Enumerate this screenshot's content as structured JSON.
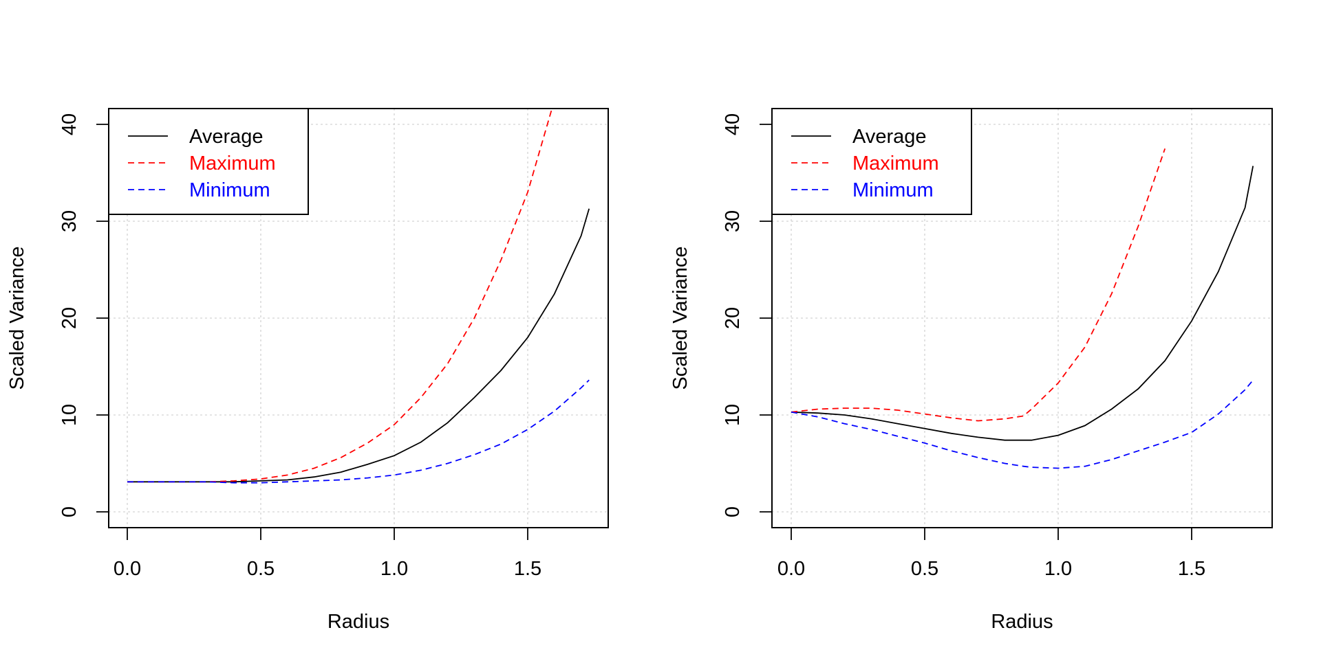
{
  "chart_data": [
    {
      "type": "line",
      "title": "",
      "xlabel": "Radius",
      "ylabel": "Scaled Variance",
      "xlim": [
        -0.07,
        1.8
      ],
      "ylim": [
        -1.6,
        41.6
      ],
      "xticks": [
        "0.0",
        "0.5",
        "1.0",
        "1.5"
      ],
      "xtick_values": [
        0,
        0.5,
        1.0,
        1.5
      ],
      "yticks": [
        "0",
        "10",
        "20",
        "30",
        "40"
      ],
      "ytick_values": [
        0,
        10,
        20,
        30,
        40
      ],
      "grid": true,
      "legend": "top-left",
      "x": [
        0,
        0.1,
        0.2,
        0.3,
        0.4,
        0.5,
        0.6,
        0.7,
        0.8,
        0.9,
        1.0,
        1.1,
        1.2,
        1.3,
        1.4,
        1.5,
        1.6,
        1.7,
        1.73
      ],
      "series": [
        {
          "name": "Average",
          "color": "#000000",
          "dash": "solid",
          "values": [
            3.1,
            3.1,
            3.1,
            3.1,
            3.1,
            3.2,
            3.3,
            3.6,
            4.1,
            4.9,
            5.8,
            7.2,
            9.2,
            11.8,
            14.6,
            18.0,
            22.5,
            28.5,
            31.3
          ]
        },
        {
          "name": "Maximum",
          "color": "#ff0000",
          "dash": "dashed",
          "values": [
            3.1,
            3.1,
            3.1,
            3.1,
            3.2,
            3.4,
            3.8,
            4.5,
            5.6,
            7.1,
            9.0,
            11.8,
            15.3,
            20.0,
            26.0,
            33.0,
            42.5,
            null,
            null
          ]
        },
        {
          "name": "Minimum",
          "color": "#0000ff",
          "dash": "dashed",
          "values": [
            3.1,
            3.1,
            3.1,
            3.1,
            3.0,
            3.0,
            3.1,
            3.2,
            3.3,
            3.5,
            3.8,
            4.3,
            5.0,
            5.9,
            7.0,
            8.5,
            10.4,
            12.8,
            13.6
          ]
        }
      ]
    },
    {
      "type": "line",
      "title": "",
      "xlabel": "Radius",
      "ylabel": "Scaled Variance",
      "xlim": [
        -0.07,
        1.8
      ],
      "ylim": [
        -1.6,
        41.6
      ],
      "xticks": [
        "0.0",
        "0.5",
        "1.0",
        "1.5"
      ],
      "xtick_values": [
        0,
        0.5,
        1.0,
        1.5
      ],
      "yticks": [
        "0",
        "10",
        "20",
        "30",
        "40"
      ],
      "ytick_values": [
        0,
        10,
        20,
        30,
        40
      ],
      "grid": true,
      "legend": "top-left",
      "x": [
        0,
        0.1,
        0.2,
        0.3,
        0.4,
        0.5,
        0.6,
        0.7,
        0.8,
        0.87,
        0.9,
        1.0,
        1.1,
        1.2,
        1.3,
        1.4,
        1.5,
        1.6,
        1.7,
        1.73
      ],
      "series": [
        {
          "name": "Average",
          "color": "#000000",
          "dash": "solid",
          "values": [
            10.3,
            10.2,
            10.0,
            9.6,
            9.1,
            8.6,
            8.1,
            7.7,
            7.4,
            7.4,
            7.4,
            7.9,
            8.9,
            10.6,
            12.7,
            15.6,
            19.7,
            24.8,
            31.4,
            35.7
          ]
        },
        {
          "name": "Maximum",
          "color": "#ff0000",
          "dash": "dashed",
          "values": [
            10.3,
            10.6,
            10.7,
            10.7,
            10.5,
            10.1,
            9.7,
            9.4,
            9.6,
            9.9,
            10.6,
            13.3,
            17.0,
            22.5,
            29.5,
            37.5,
            null,
            null,
            null,
            null
          ]
        },
        {
          "name": "Minimum",
          "color": "#0000ff",
          "dash": "dashed",
          "values": [
            10.3,
            9.8,
            9.1,
            8.5,
            7.8,
            7.1,
            6.3,
            5.6,
            5.0,
            4.7,
            4.6,
            4.5,
            4.7,
            5.4,
            6.3,
            7.2,
            8.2,
            10.1,
            12.6,
            13.6
          ]
        }
      ]
    }
  ]
}
